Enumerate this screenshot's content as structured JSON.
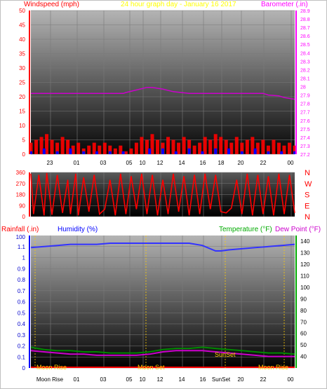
{
  "header": {
    "left_label": "Windspeed (mph)",
    "center_label": "24 hour graph day - January 16 2017",
    "right_label": "Barometer (.in)"
  },
  "colors": {
    "wind_speed": "#ff0000",
    "wind_gust_fill": "#ff0000",
    "wind_avg": "#0000ff",
    "wind_green": "#00aa00",
    "barometer": "#cc00cc",
    "direction": "#ff0000",
    "humidity": "#3333ff",
    "temperature": "#008800",
    "dew_point": "#cc00cc",
    "moon": "#ffcc00",
    "sun": "#ffcc00",
    "grid": "#7a7a7a",
    "left_axis": "#ff0000",
    "right_axis_top": "#ff00ff",
    "rain_axis": "#0000ff",
    "temp_axis": "#00aa00"
  },
  "chart_data": [
    {
      "type": "line",
      "title": "24 hour graph day - January 16 2017",
      "xlabel": "",
      "ylabel": "Windspeed (mph)",
      "y2label": "Barometer (.in)",
      "x_ticks": [
        "23",
        "01",
        "03",
        "05",
        "10",
        "12",
        "14",
        "16",
        "18",
        "20",
        "22",
        "00"
      ],
      "ylim": [
        0,
        50
      ],
      "yticks": [
        0,
        5,
        10,
        15,
        20,
        25,
        30,
        35,
        40,
        45,
        50
      ],
      "y2lim": [
        27.2,
        28.9
      ],
      "y2ticks": [
        "27.2",
        "27.3",
        "27.4",
        "27.5",
        "27.6",
        "27.7",
        "27.8",
        "27.9",
        "28",
        "28.1",
        "28.2",
        "28.3",
        "28.4",
        "28.5",
        "28.6",
        "28.7",
        "28.8",
        "28.9"
      ],
      "grid": true,
      "series": [
        {
          "name": "Barometer (.in)",
          "axis": "right",
          "x": [
            0,
            0.06,
            0.1,
            0.2,
            0.3,
            0.35,
            0.36,
            0.4,
            0.44,
            0.46,
            0.5,
            0.54,
            0.6,
            0.7,
            0.8,
            0.85,
            0.88,
            0.9,
            0.94,
            0.96,
            1.0
          ],
          "values": [
            27.92,
            27.92,
            27.92,
            27.92,
            27.92,
            27.92,
            27.93,
            27.96,
            27.99,
            27.99,
            27.97,
            27.94,
            27.92,
            27.92,
            27.92,
            27.92,
            27.92,
            27.9,
            27.89,
            27.87,
            27.85
          ]
        },
        {
          "name": "Wind gust (mph)",
          "axis": "left",
          "x": [
            0.0,
            0.02,
            0.04,
            0.06,
            0.08,
            0.1,
            0.12,
            0.14,
            0.16,
            0.18,
            0.2,
            0.22,
            0.24,
            0.26,
            0.28,
            0.3,
            0.32,
            0.34,
            0.36,
            0.38,
            0.4,
            0.42,
            0.44,
            0.46,
            0.48,
            0.5,
            0.52,
            0.54,
            0.56,
            0.58,
            0.6,
            0.62,
            0.64,
            0.66,
            0.68,
            0.7,
            0.72,
            0.74,
            0.76,
            0.78,
            0.8,
            0.82,
            0.84,
            0.86,
            0.88,
            0.9,
            0.92,
            0.94,
            0.96,
            0.98,
            1.0
          ],
          "values": [
            4,
            5,
            6,
            7,
            5,
            4,
            6,
            5,
            3,
            4,
            2,
            3,
            4,
            3,
            4,
            3,
            2,
            3,
            1,
            2,
            4,
            6,
            5,
            7,
            5,
            4,
            6,
            5,
            4,
            6,
            5,
            3,
            4,
            6,
            5,
            7,
            6,
            5,
            4,
            6,
            4,
            5,
            6,
            4,
            5,
            3,
            5,
            4,
            3,
            4,
            3
          ]
        },
        {
          "name": "Wind average (mph)",
          "axis": "left",
          "x": [
            0.0,
            0.05,
            0.1,
            0.15,
            0.2,
            0.25,
            0.3,
            0.35,
            0.4,
            0.45,
            0.5,
            0.55,
            0.6,
            0.65,
            0.7,
            0.75,
            0.8,
            0.85,
            0.9,
            0.95,
            1.0
          ],
          "values": [
            1,
            2,
            1,
            2,
            1,
            1,
            1,
            1,
            0,
            2,
            2,
            1,
            2,
            1,
            2,
            2,
            1,
            2,
            1,
            1,
            1
          ]
        }
      ]
    },
    {
      "type": "scatter",
      "title": "",
      "ylabel": "",
      "ylim": [
        0,
        360
      ],
      "yticks": [
        0,
        90,
        180,
        270,
        360
      ],
      "right_labels": [
        "N",
        "W",
        "S",
        "E",
        "N"
      ],
      "series": [
        {
          "name": "Wind direction",
          "x": [
            0.0,
            0.01,
            0.03,
            0.05,
            0.06,
            0.08,
            0.1,
            0.12,
            0.14,
            0.15,
            0.17,
            0.18,
            0.2,
            0.22,
            0.24,
            0.26,
            0.28,
            0.3,
            0.32,
            0.34,
            0.36,
            0.38,
            0.4,
            0.42,
            0.44,
            0.46,
            0.48,
            0.5,
            0.52,
            0.54,
            0.56,
            0.58,
            0.6,
            0.62,
            0.64,
            0.66,
            0.68,
            0.7,
            0.72,
            0.74,
            0.76,
            0.78,
            0.8,
            0.82,
            0.84,
            0.86,
            0.88,
            0.9,
            0.92,
            0.94,
            0.96,
            0.98,
            1.0
          ],
          "values": [
            350,
            20,
            340,
            10,
            355,
            15,
            340,
            30,
            300,
            20,
            350,
            10,
            320,
            40,
            340,
            20,
            60,
            300,
            10,
            350,
            20,
            330,
            60,
            350,
            20,
            340,
            10,
            300,
            20,
            350,
            40,
            330,
            10,
            340,
            20,
            350,
            60,
            340,
            40,
            30,
            70,
            300,
            20,
            350,
            10,
            340,
            20,
            330,
            10,
            350,
            20,
            340,
            30
          ]
        }
      ]
    },
    {
      "type": "line",
      "title": "",
      "ylabel": "Rainfall (.in)",
      "y2label": "Humidity (%)",
      "y3label": "Temperature (°F)",
      "y4label": "Dew Point (°F)",
      "x_ticks": [
        "Moon Rise",
        "01",
        "03",
        "05",
        "10",
        "12",
        "14",
        "16",
        "SunSet",
        "20",
        "22",
        "00"
      ],
      "ylim": [
        0,
        1.2
      ],
      "yticks": [
        "0",
        "0.1",
        "0.2",
        "0.3",
        "0.4",
        "0.5",
        "0.6",
        "0.7",
        "0.8",
        "0.9",
        "1",
        "1.1"
      ],
      "y_top_tick": "100",
      "y_right_lim": [
        30,
        145
      ],
      "y_right_ticks": [
        "40",
        "50",
        "60",
        "70",
        "80",
        "90",
        "100",
        "110",
        "120",
        "130",
        "140"
      ],
      "annotations": [
        "Moon Rise",
        "Moon Set",
        "SunSet",
        "Moon Rise"
      ],
      "series": [
        {
          "name": "Humidity (%)",
          "axis": "left",
          "x": [
            0.0,
            0.05,
            0.1,
            0.15,
            0.2,
            0.25,
            0.3,
            0.35,
            0.4,
            0.45,
            0.5,
            0.55,
            0.6,
            0.65,
            0.68,
            0.7,
            0.72,
            0.75,
            0.8,
            0.85,
            0.9,
            0.95,
            1.0
          ],
          "values": [
            1.09,
            1.1,
            1.11,
            1.12,
            1.12,
            1.12,
            1.13,
            1.13,
            1.13,
            1.13,
            1.13,
            1.13,
            1.13,
            1.11,
            1.08,
            1.06,
            1.06,
            1.07,
            1.08,
            1.09,
            1.1,
            1.11,
            1.12
          ]
        },
        {
          "name": "Temperature (°F)",
          "axis": "right",
          "x": [
            0.0,
            0.05,
            0.1,
            0.15,
            0.2,
            0.25,
            0.3,
            0.35,
            0.4,
            0.45,
            0.5,
            0.55,
            0.6,
            0.65,
            0.7,
            0.75,
            0.8,
            0.85,
            0.9,
            0.95,
            1.0
          ],
          "values": [
            48,
            46,
            45,
            45,
            44,
            44,
            43,
            43,
            43,
            44,
            46,
            47,
            47,
            48,
            47,
            46,
            45,
            44,
            43,
            43,
            42
          ]
        },
        {
          "name": "Dew Point (°F)",
          "axis": "right",
          "x": [
            0.0,
            0.05,
            0.1,
            0.15,
            0.2,
            0.25,
            0.3,
            0.35,
            0.4,
            0.45,
            0.5,
            0.55,
            0.6,
            0.65,
            0.7,
            0.75,
            0.8,
            0.85,
            0.9,
            0.95,
            1.0
          ],
          "values": [
            45,
            44,
            43,
            42,
            42,
            41,
            41,
            41,
            41,
            42,
            44,
            45,
            45,
            45,
            44,
            43,
            42,
            41,
            40,
            40,
            40
          ]
        }
      ]
    }
  ]
}
